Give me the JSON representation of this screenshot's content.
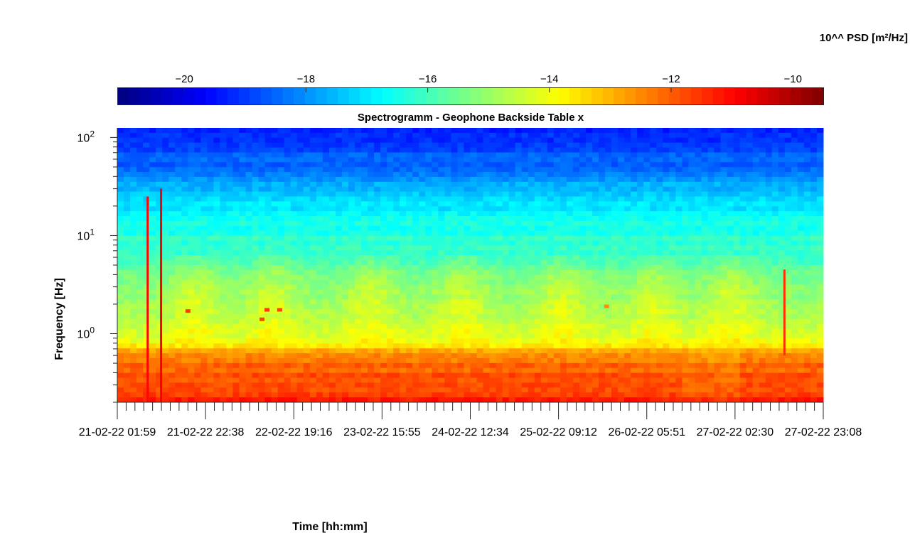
{
  "chart_data": {
    "type": "heatmap",
    "title": "Spectrogramm - Geophone Backside Table x",
    "xlabel": "Time [hh:mm]",
    "ylabel": "Frequency [Hz]",
    "colorbar_label": "10^^ PSD [m²/Hz]",
    "colormap": "jet",
    "color_range": [
      -21.1,
      -9.5
    ],
    "colorbar_ticks": [
      -20,
      -18,
      -16,
      -14,
      -12,
      -10
    ],
    "colorbar_location": "top",
    "y_scale": "log",
    "ylim": [
      0.2,
      125
    ],
    "y_ticks": [
      {
        "value": 1,
        "base": "10",
        "exp": "0"
      },
      {
        "value": 10,
        "base": "10",
        "exp": "1"
      },
      {
        "value": 100,
        "base": "10",
        "exp": "2"
      }
    ],
    "x_tick_labels": [
      "21-02-22 01:59",
      "21-02-22 22:38",
      "22-02-22 19:16",
      "23-02-22 15:55",
      "24-02-22 12:34",
      "25-02-22 09:12",
      "26-02-22 05:51",
      "27-02-22 02:30",
      "27-02-22 23:08"
    ],
    "x_label_positions": [
      0,
      0.125,
      0.25,
      0.375,
      0.5,
      0.625,
      0.75,
      0.875,
      1.0
    ],
    "minor_ticks_per_major": 10,
    "psd_profile": [
      {
        "freq": 0.2,
        "log_psd": -11.3
      },
      {
        "freq": 0.3,
        "log_psd": -11.8
      },
      {
        "freq": 0.5,
        "log_psd": -12.1
      },
      {
        "freq": 0.65,
        "log_psd": -12.8
      },
      {
        "freq": 0.8,
        "log_psd": -13.9
      },
      {
        "freq": 1.0,
        "log_psd": -14.3
      },
      {
        "freq": 2.0,
        "log_psd": -14.9
      },
      {
        "freq": 4.0,
        "log_psd": -15.6
      },
      {
        "freq": 8.0,
        "log_psd": -16.2
      },
      {
        "freq": 15.0,
        "log_psd": -16.6
      },
      {
        "freq": 30.0,
        "log_psd": -17.6
      },
      {
        "freq": 50.0,
        "log_psd": -18.4
      },
      {
        "freq": 125.0,
        "log_psd": -19.4
      }
    ],
    "events": [
      {
        "time": 0.043,
        "freq_min": 0.2,
        "freq_max": 25,
        "log_psd": -11.0
      },
      {
        "time": 0.062,
        "freq_min": 0.2,
        "freq_max": 30,
        "log_psd": -10.9
      },
      {
        "time": 0.945,
        "freq_min": 0.6,
        "freq_max": 4.5,
        "log_psd": -11.5
      }
    ],
    "hotspots": [
      {
        "time": 0.1,
        "freq": 1.7,
        "log_psd": -11.6
      },
      {
        "time": 0.205,
        "freq": 1.4,
        "log_psd": -11.7
      },
      {
        "time": 0.212,
        "freq": 1.75,
        "log_psd": -11.6
      },
      {
        "time": 0.23,
        "freq": 1.75,
        "log_psd": -11.7
      },
      {
        "time": 0.693,
        "freq": 1.9,
        "log_psd": -12.6
      }
    ],
    "grid": false,
    "legend": "none"
  }
}
